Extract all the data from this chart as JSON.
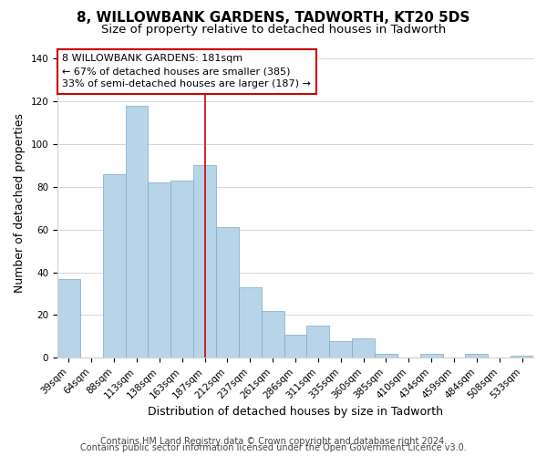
{
  "title": "8, WILLOWBANK GARDENS, TADWORTH, KT20 5DS",
  "subtitle": "Size of property relative to detached houses in Tadworth",
  "xlabel": "Distribution of detached houses by size in Tadworth",
  "ylabel": "Number of detached properties",
  "categories": [
    "39sqm",
    "64sqm",
    "88sqm",
    "113sqm",
    "138sqm",
    "163sqm",
    "187sqm",
    "212sqm",
    "237sqm",
    "261sqm",
    "286sqm",
    "311sqm",
    "335sqm",
    "360sqm",
    "385sqm",
    "410sqm",
    "434sqm",
    "459sqm",
    "484sqm",
    "508sqm",
    "533sqm"
  ],
  "values": [
    37,
    0,
    86,
    118,
    82,
    83,
    90,
    61,
    33,
    22,
    11,
    15,
    8,
    9,
    2,
    0,
    2,
    0,
    2,
    0,
    1
  ],
  "bar_color": "#b8d4e8",
  "bar_edge_color": "#7aaac8",
  "vline_index": 6,
  "vline_color": "#cc0000",
  "annotation_line1": "8 WILLOWBANK GARDENS: 181sqm",
  "annotation_line2": "← 67% of detached houses are smaller (385)",
  "annotation_line3": "33% of semi-detached houses are larger (187) →",
  "annotation_box_color": "white",
  "annotation_box_edge": "#cc0000",
  "ylim": [
    0,
    145
  ],
  "yticks": [
    0,
    20,
    40,
    60,
    80,
    100,
    120,
    140
  ],
  "footer1": "Contains HM Land Registry data © Crown copyright and database right 2024.",
  "footer2": "Contains public sector information licensed under the Open Government Licence v3.0.",
  "background_color": "white",
  "grid_color": "#d0d0d0",
  "title_fontsize": 11,
  "subtitle_fontsize": 9.5,
  "axis_label_fontsize": 9,
  "tick_fontsize": 7.5,
  "annotation_fontsize": 8,
  "footer_fontsize": 7
}
